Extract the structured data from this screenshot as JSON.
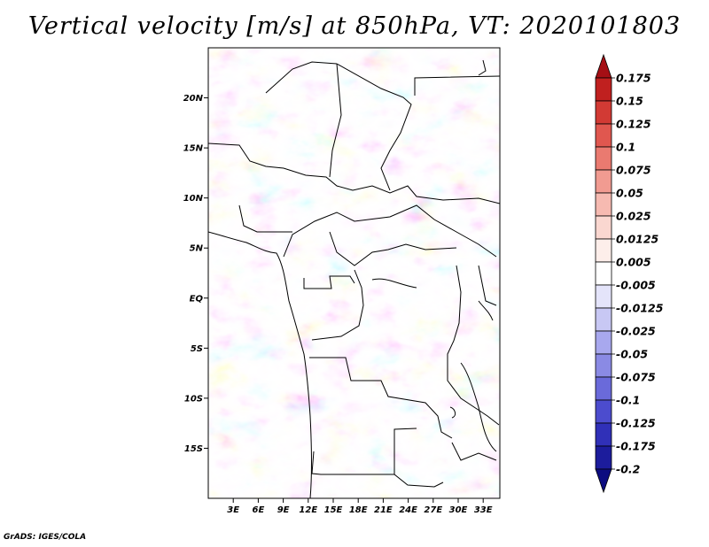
{
  "title": "Vertical velocity [m/s] at 850hPa, VT: 2020101803",
  "credit": "GrADS: IGES/COLA",
  "map": {
    "lon_range": [
      0,
      35
    ],
    "lat_range": [
      -20,
      25
    ],
    "lat_ticks": [
      {
        "lat": 20,
        "label": "20N"
      },
      {
        "lat": 15,
        "label": "15N"
      },
      {
        "lat": 10,
        "label": "10N"
      },
      {
        "lat": 5,
        "label": "5N"
      },
      {
        "lat": 0,
        "label": "EQ"
      },
      {
        "lat": -5,
        "label": "5S"
      },
      {
        "lat": -10,
        "label": "10S"
      },
      {
        "lat": -15,
        "label": "15S"
      }
    ],
    "lon_ticks": [
      {
        "lon": 3,
        "label": "3E"
      },
      {
        "lon": 6,
        "label": "6E"
      },
      {
        "lon": 9,
        "label": "9E"
      },
      {
        "lon": 12,
        "label": "12E"
      },
      {
        "lon": 15,
        "label": "15E"
      },
      {
        "lon": 18,
        "label": "18E"
      },
      {
        "lon": 21,
        "label": "21E"
      },
      {
        "lon": 24,
        "label": "24E"
      },
      {
        "lon": 27,
        "label": "27E"
      },
      {
        "lon": 30,
        "label": "30E"
      },
      {
        "lon": 33,
        "label": "33E"
      }
    ]
  },
  "colorbar": {
    "levels": [
      "0.175",
      "0.15",
      "0.125",
      "0.1",
      "0.075",
      "0.05",
      "0.025",
      "0.0125",
      "0.005",
      "-0.005",
      "-0.0125",
      "-0.025",
      "-0.05",
      "-0.075",
      "-0.1",
      "-0.125",
      "-0.175",
      "-0.2"
    ],
    "colors": [
      "#a50f15",
      "#c0201f",
      "#d23a34",
      "#e0574f",
      "#ea7a70",
      "#f19b91",
      "#f6bab1",
      "#fad7d0",
      "#fdeeea",
      "#ffffff",
      "#e4e4fa",
      "#c8c8f4",
      "#a8a8ee",
      "#8a8ae4",
      "#6a6ada",
      "#4c4cce",
      "#3030b8",
      "#1c1c9c",
      "#0c0c80"
    ]
  }
}
